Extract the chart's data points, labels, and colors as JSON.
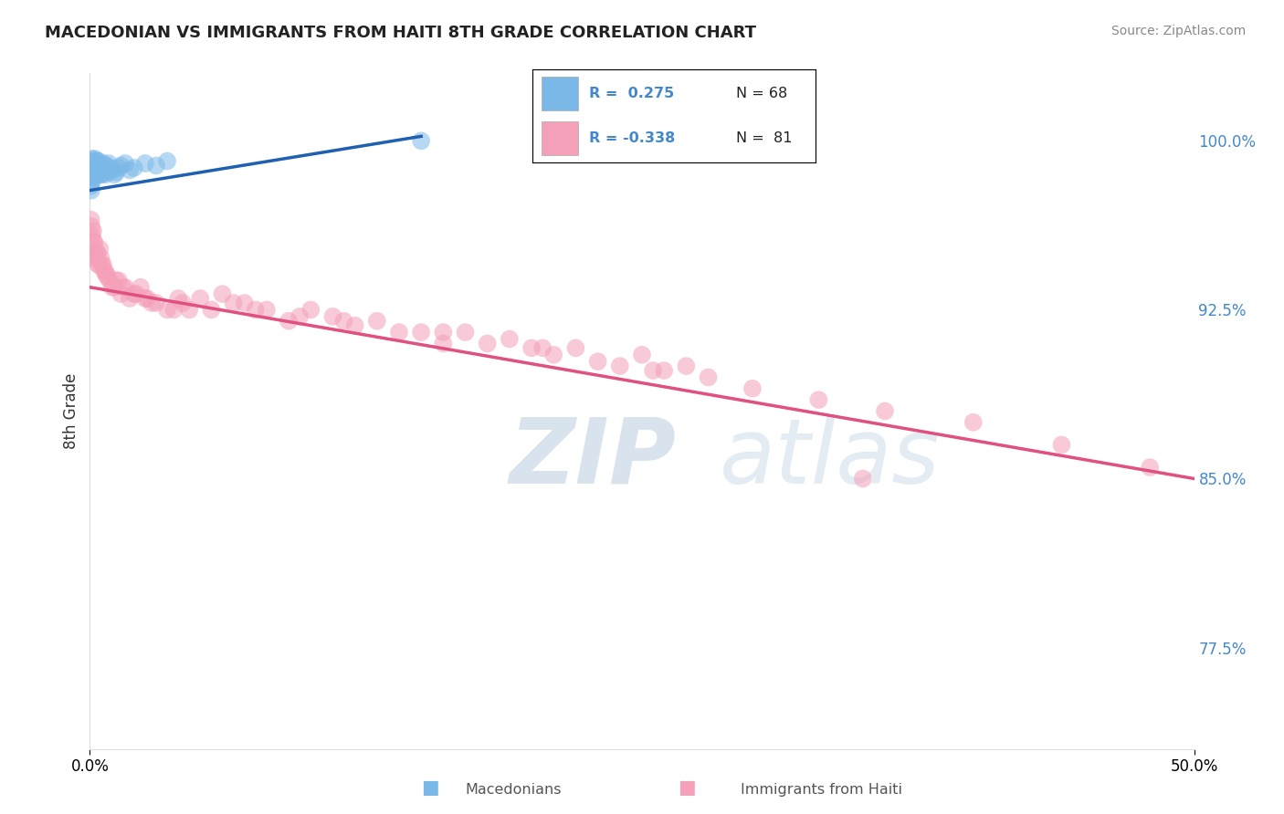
{
  "title": "MACEDONIAN VS IMMIGRANTS FROM HAITI 8TH GRADE CORRELATION CHART",
  "source": "Source: ZipAtlas.com",
  "ylabel": "8th Grade",
  "yticks": [
    77.5,
    85.0,
    92.5,
    100.0
  ],
  "ytick_labels": [
    "77.5%",
    "85.0%",
    "92.5%",
    "100.0%"
  ],
  "ylim": [
    73.0,
    103.0
  ],
  "xlim": [
    0.0,
    50.0
  ],
  "macedonian_color": "#7ab8e8",
  "haiti_color": "#f4a0b8",
  "trendline_macedonian_color": "#2060b0",
  "trendline_haiti_color": "#e05080",
  "watermark_zip": "ZIP",
  "watermark_atlas": "atlas",
  "background_color": "#ffffff",
  "grid_color": "#cccccc",
  "macedonian_x": [
    0.05,
    0.07,
    0.08,
    0.09,
    0.1,
    0.11,
    0.12,
    0.13,
    0.14,
    0.15,
    0.16,
    0.17,
    0.18,
    0.19,
    0.2,
    0.21,
    0.22,
    0.23,
    0.24,
    0.25,
    0.26,
    0.27,
    0.28,
    0.29,
    0.3,
    0.32,
    0.34,
    0.36,
    0.38,
    0.4,
    0.42,
    0.45,
    0.48,
    0.5,
    0.55,
    0.6,
    0.65,
    0.7,
    0.75,
    0.8,
    0.9,
    1.0,
    1.1,
    1.2,
    1.4,
    1.6,
    1.8,
    2.0,
    2.5,
    3.0,
    3.5,
    0.06,
    0.1,
    0.13,
    0.16,
    0.19,
    0.22,
    0.25,
    0.28,
    0.31,
    0.35,
    0.4,
    0.5,
    0.6,
    0.7,
    0.85,
    1.3,
    15.0
  ],
  "macedonian_y": [
    98.0,
    98.5,
    99.0,
    98.8,
    98.5,
    99.2,
    98.6,
    99.0,
    98.7,
    98.9,
    99.1,
    98.4,
    98.8,
    99.0,
    98.5,
    98.7,
    99.2,
    98.6,
    98.9,
    98.5,
    98.8,
    99.0,
    98.6,
    98.9,
    98.5,
    98.7,
    99.0,
    98.5,
    98.8,
    99.1,
    98.6,
    98.9,
    98.5,
    98.8,
    98.7,
    99.0,
    98.8,
    98.5,
    98.9,
    98.6,
    98.8,
    98.7,
    98.5,
    98.6,
    98.9,
    99.0,
    98.7,
    98.8,
    99.0,
    98.9,
    99.1,
    97.8,
    98.2,
    98.6,
    98.4,
    98.8,
    99.0,
    98.5,
    98.7,
    99.1,
    98.6,
    98.9,
    98.5,
    98.8,
    98.7,
    99.0,
    98.8,
    100.0
  ],
  "haiti_x": [
    0.05,
    0.1,
    0.15,
    0.2,
    0.25,
    0.3,
    0.35,
    0.4,
    0.45,
    0.5,
    0.6,
    0.7,
    0.8,
    0.9,
    1.0,
    1.2,
    1.4,
    1.6,
    1.8,
    2.0,
    2.3,
    2.6,
    3.0,
    3.5,
    4.0,
    4.5,
    5.0,
    5.5,
    6.0,
    7.0,
    8.0,
    9.0,
    10.0,
    11.0,
    12.0,
    13.0,
    14.0,
    15.0,
    16.0,
    17.0,
    18.0,
    19.0,
    20.0,
    21.0,
    22.0,
    23.0,
    24.0,
    25.0,
    26.0,
    27.0,
    0.08,
    0.18,
    0.28,
    0.38,
    0.55,
    0.75,
    1.1,
    1.5,
    2.1,
    2.8,
    3.8,
    6.5,
    9.5,
    28.0,
    30.0,
    33.0,
    36.0,
    40.0,
    44.0,
    48.0,
    0.22,
    0.65,
    1.3,
    2.5,
    4.2,
    7.5,
    11.5,
    16.0,
    20.5,
    25.5,
    35.0
  ],
  "haiti_y": [
    96.5,
    95.8,
    96.0,
    95.5,
    95.2,
    94.8,
    95.0,
    94.5,
    95.2,
    94.8,
    94.5,
    94.2,
    94.0,
    93.8,
    93.5,
    93.8,
    93.2,
    93.5,
    93.0,
    93.2,
    93.5,
    93.0,
    92.8,
    92.5,
    93.0,
    92.5,
    93.0,
    92.5,
    93.2,
    92.8,
    92.5,
    92.0,
    92.5,
    92.2,
    91.8,
    92.0,
    91.5,
    91.5,
    91.0,
    91.5,
    91.0,
    91.2,
    90.8,
    90.5,
    90.8,
    90.2,
    90.0,
    90.5,
    89.8,
    90.0,
    96.2,
    95.5,
    94.8,
    94.5,
    94.5,
    94.0,
    93.5,
    93.5,
    93.2,
    92.8,
    92.5,
    92.8,
    92.2,
    89.5,
    89.0,
    88.5,
    88.0,
    87.5,
    86.5,
    85.5,
    95.0,
    94.2,
    93.8,
    93.0,
    92.8,
    92.5,
    92.0,
    91.5,
    90.8,
    89.8,
    85.0
  ],
  "haiti_trendline_x": [
    0.0,
    50.0
  ],
  "haiti_trendline_y": [
    93.5,
    85.0
  ],
  "mac_trendline_x": [
    0.0,
    15.0
  ],
  "mac_trendline_y": [
    97.8,
    100.2
  ]
}
